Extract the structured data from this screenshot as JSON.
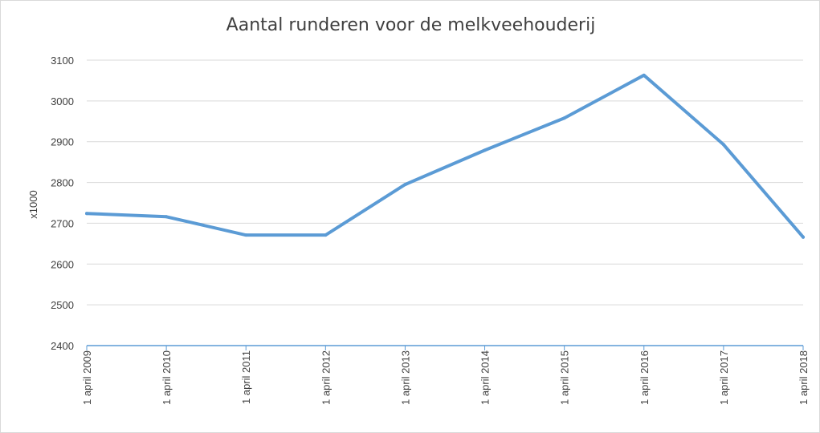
{
  "chart_data": {
    "type": "line",
    "title": "Aantal runderen voor de melkveehouderij",
    "xlabel": "",
    "ylabel": "x1000",
    "ylim": [
      2400,
      3100
    ],
    "yticks": [
      2400,
      2500,
      2600,
      2700,
      2800,
      2900,
      3000,
      3100
    ],
    "grid": true,
    "categories": [
      "1 april 2009",
      "1 april 2010",
      "1 april 2011",
      "1 april 2012",
      "1 april 2013",
      "1 april 2014",
      "1 april 2015",
      "1 april 2016",
      "1 april 2017",
      "1 april 2018"
    ],
    "series": [
      {
        "values": [
          2724,
          2716,
          2671,
          2671,
          2795,
          2879,
          2958,
          3063,
          2893,
          2666
        ],
        "color": "#5b9bd5"
      }
    ],
    "colors": {
      "grid": "#d9d9d9",
      "axis": "#5b9bd5",
      "text": "#404040"
    }
  }
}
